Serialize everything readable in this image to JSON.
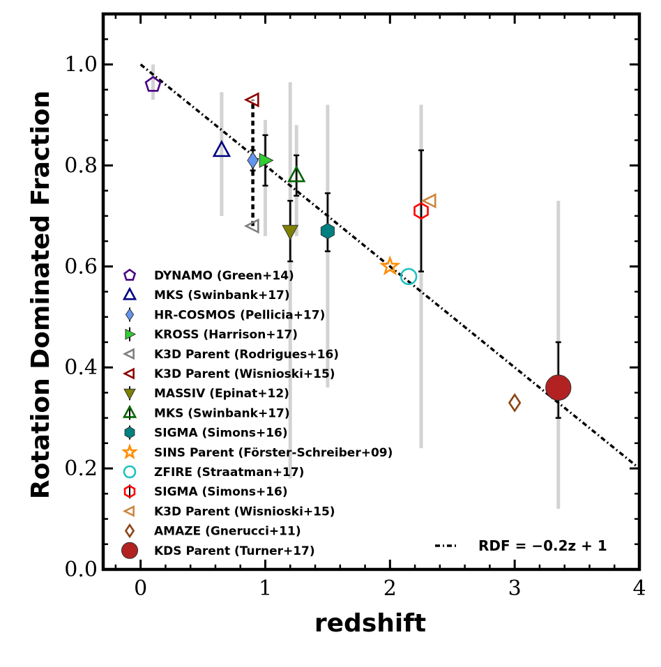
{
  "chart_data": {
    "type": "scatter",
    "xlabel": "redshift",
    "ylabel": "Rotation Dominated Fraction",
    "xlim": [
      -0.3,
      4.0
    ],
    "ylim": [
      0.0,
      1.1
    ],
    "x_ticks": [
      0,
      1,
      2,
      3,
      4
    ],
    "y_ticks": [
      0.0,
      0.2,
      0.4,
      0.6,
      0.8,
      1.0
    ],
    "x_tick_labels": [
      "0",
      "1",
      "2",
      "3",
      "4"
    ],
    "y_tick_labels": [
      "0.0",
      "0.2",
      "0.4",
      "0.6",
      "0.8",
      "1.0"
    ],
    "grid": false,
    "fit_line": {
      "label": "RDF = −0.2z + 1",
      "slope": -0.2,
      "intercept": 1.0,
      "style": "dash-dot",
      "color": "#000000"
    },
    "k3d_link": {
      "x": 0.9,
      "y_low": 0.68,
      "y_high": 0.93
    },
    "series": [
      {
        "name": "DYNAMO (Green+14)",
        "marker": "pentagon",
        "color": "#4b0082",
        "filled": false,
        "x": 0.1,
        "y": 0.96,
        "grey_range": [
          0.93,
          1.0
        ]
      },
      {
        "name": "MKS (Swinbank+17)",
        "marker": "triangle-up",
        "color": "#000080",
        "filled": false,
        "x": 0.65,
        "y": 0.83,
        "grey_range": [
          0.7,
          0.945
        ]
      },
      {
        "name": "HR-COSMOS (Pellicia+17)",
        "marker": "diamond",
        "color": "#6495ed",
        "filled": true,
        "x": 0.9,
        "y": 0.81,
        "err": [
          0.79,
          0.83
        ]
      },
      {
        "name": "KROSS (Harrison+17)",
        "marker": "triangle-right",
        "color": "#32cd32",
        "filled": true,
        "x": 1.0,
        "y": 0.81,
        "err": [
          0.76,
          0.86
        ],
        "grey_range": [
          0.66,
          0.89
        ]
      },
      {
        "name": "K3D Parent (Rodrigues+16)",
        "marker": "triangle-left",
        "color": "#808080",
        "filled": false,
        "x": 0.9,
        "y": 0.68
      },
      {
        "name": "K3D Parent (Wisnioski+15)",
        "marker": "triangle-left",
        "color": "#8b0000",
        "filled": false,
        "x": 0.9,
        "y": 0.93
      },
      {
        "name": "MASSIV (Epinat+12)",
        "marker": "triangle-down",
        "color": "#808000",
        "filled": true,
        "x": 1.2,
        "y": 0.67,
        "err": [
          0.61,
          0.73
        ],
        "grey_range": [
          0.18,
          0.965
        ]
      },
      {
        "name": "MKS (Swinbank+17)",
        "marker": "triangle-up",
        "color": "#006400",
        "filled": false,
        "x": 1.25,
        "y": 0.78,
        "err": [
          0.74,
          0.82
        ],
        "grey_range": [
          0.66,
          0.88
        ]
      },
      {
        "name": "SIGMA (Simons+16)",
        "marker": "hexagon",
        "color": "#008080",
        "filled": true,
        "x": 1.5,
        "y": 0.67,
        "err": [
          0.63,
          0.745
        ],
        "grey_range": [
          0.36,
          0.92
        ]
      },
      {
        "name": "SINS Parent (Förster-Schreiber+09)",
        "marker": "star",
        "color": "#ff8c00",
        "filled": false,
        "x": 2.0,
        "y": 0.6
      },
      {
        "name": "ZFIRE (Straatman+17)",
        "marker": "circle",
        "color": "#20c0c0",
        "filled": false,
        "x": 2.15,
        "y": 0.58
      },
      {
        "name": "SIGMA (Simons+16)",
        "marker": "hexagon",
        "color": "#ff0000",
        "filled": false,
        "x": 2.25,
        "y": 0.71,
        "err": [
          0.59,
          0.83
        ],
        "grey_range": [
          0.24,
          0.92
        ]
      },
      {
        "name": "K3D Parent (Wisnioski+15)",
        "marker": "triangle-left",
        "color": "#cd853f",
        "filled": false,
        "x": 2.32,
        "y": 0.73
      },
      {
        "name": "AMAZE (Gnerucci+11)",
        "marker": "diamond",
        "color": "#8b4513",
        "filled": false,
        "x": 3.0,
        "y": 0.33
      },
      {
        "name": "KDS Parent (Turner+17)",
        "marker": "circle-large",
        "color": "#b22222",
        "filled": true,
        "x": 3.35,
        "y": 0.36,
        "err": [
          0.3,
          0.45
        ],
        "grey_range": [
          0.12,
          0.73
        ]
      }
    ]
  }
}
